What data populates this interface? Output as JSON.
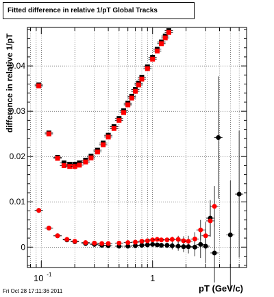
{
  "page": {
    "title": "Fitted difference in relative 1/pT  Global Tracks",
    "timestamp": "Fri Oct 28 17:11:36 2011"
  },
  "chart_data": {
    "type": "scatter",
    "title": "Fitted difference in relative 1/pT  Global Tracks",
    "xlabel": "pT (GeV/c)",
    "ylabel": "difference in relative 1/pT",
    "xscale": "log",
    "xlim": [
      0.075,
      7.0
    ],
    "ylim": [
      -0.0045,
      0.0485
    ],
    "grid": true,
    "x_ticks": [
      {
        "v": 0.1,
        "b": "10",
        "e": "-1"
      },
      {
        "v": 1,
        "b": "1",
        "e": ""
      }
    ],
    "y_ticks": [
      {
        "v": 0,
        "label": "0"
      },
      {
        "v": 0.01,
        "label": "0.01"
      },
      {
        "v": 0.02,
        "label": "0.02"
      },
      {
        "v": 0.03,
        "label": "0.03"
      },
      {
        "v": 0.04,
        "label": "0.04"
      }
    ],
    "series": [
      {
        "marker": "square",
        "color": "#000000",
        "points": [
          [
            0.095,
            0.0358
          ],
          [
            0.117,
            0.0252
          ],
          [
            0.14,
            0.0198
          ],
          [
            0.16,
            0.0186
          ],
          [
            0.18,
            0.0183
          ],
          [
            0.2,
            0.0183
          ],
          [
            0.22,
            0.0186
          ],
          [
            0.25,
            0.0192
          ],
          [
            0.28,
            0.0201
          ],
          [
            0.32,
            0.0214
          ],
          [
            0.36,
            0.023
          ],
          [
            0.4,
            0.0247
          ],
          [
            0.45,
            0.0266
          ],
          [
            0.5,
            0.0284
          ],
          [
            0.55,
            0.0301
          ],
          [
            0.6,
            0.0318
          ],
          [
            0.65,
            0.0333
          ],
          [
            0.7,
            0.0348
          ],
          [
            0.75,
            0.0362
          ],
          [
            0.8,
            0.0375
          ],
          [
            0.9,
            0.0398
          ],
          [
            1.0,
            0.0419
          ],
          [
            1.1,
            0.0437
          ],
          [
            1.2,
            0.0453
          ],
          [
            1.3,
            0.0466
          ],
          [
            1.4,
            0.0478
          ]
        ]
      },
      {
        "marker": "square",
        "color": "#ff0000",
        "points": [
          [
            0.095,
            0.0356
          ],
          [
            0.117,
            0.025
          ],
          [
            0.14,
            0.0196
          ],
          [
            0.16,
            0.018
          ],
          [
            0.18,
            0.0178
          ],
          [
            0.2,
            0.0178
          ],
          [
            0.22,
            0.0181
          ],
          [
            0.25,
            0.0188
          ],
          [
            0.28,
            0.0197
          ],
          [
            0.32,
            0.021
          ],
          [
            0.36,
            0.0226
          ],
          [
            0.4,
            0.0243
          ],
          [
            0.45,
            0.0262
          ],
          [
            0.5,
            0.028
          ],
          [
            0.55,
            0.0297
          ],
          [
            0.6,
            0.0314
          ],
          [
            0.65,
            0.0329
          ],
          [
            0.7,
            0.0344
          ],
          [
            0.75,
            0.0358
          ],
          [
            0.8,
            0.0371
          ],
          [
            0.9,
            0.0394
          ],
          [
            1.0,
            0.0415
          ],
          [
            1.1,
            0.0433
          ],
          [
            1.2,
            0.0449
          ],
          [
            1.3,
            0.0462
          ],
          [
            1.4,
            0.0474
          ]
        ]
      },
      {
        "marker": "circle",
        "color": "#000000",
        "points": [
          [
            0.095,
            0.0081,
            0
          ],
          [
            0.117,
            0.0042,
            0
          ],
          [
            0.14,
            0.0025,
            0
          ],
          [
            0.17,
            0.0016,
            0
          ],
          [
            0.2,
            0.0012,
            0
          ],
          [
            0.25,
            0.0008,
            0
          ],
          [
            0.3,
            0.0006,
            0
          ],
          [
            0.35,
            0.0004,
            0
          ],
          [
            0.4,
            0.0003,
            0
          ],
          [
            0.5,
            0.0002,
            0
          ],
          [
            0.6,
            0.0002,
            0
          ],
          [
            0.7,
            0.0003,
            0
          ],
          [
            0.8,
            0.0004,
            0
          ],
          [
            0.9,
            0.0005,
            0
          ],
          [
            1.0,
            0.0006,
            0
          ],
          [
            1.1,
            0.0005,
            0.0004
          ],
          [
            1.2,
            0.0004,
            0.0005
          ],
          [
            1.35,
            0.0004,
            0.0006
          ],
          [
            1.5,
            0.0003,
            0.0008
          ],
          [
            1.7,
            0.0002,
            0.001
          ],
          [
            1.9,
            0.0001,
            0.0012
          ],
          [
            2.1,
            0.0001,
            0.0015
          ],
          [
            2.4,
            0.0,
            0.002
          ],
          [
            2.7,
            0.0006,
            0.003
          ],
          [
            3.0,
            0.0002,
            0.0038
          ],
          [
            3.3,
            0.0064,
            0.004
          ],
          [
            3.6,
            -0.0013,
            0.0065
          ],
          [
            3.9,
            0.0242,
            0.0135
          ],
          [
            5.0,
            0.0027,
            0.012
          ],
          [
            6.0,
            0.0117,
            0.014
          ]
        ]
      },
      {
        "marker": "circle",
        "color": "#ff0000",
        "points": [
          [
            0.095,
            0.0081,
            0
          ],
          [
            0.117,
            0.0042,
            0
          ],
          [
            0.14,
            0.0025,
            0
          ],
          [
            0.17,
            0.0017,
            0
          ],
          [
            0.2,
            0.0013,
            0
          ],
          [
            0.25,
            0.001,
            0
          ],
          [
            0.3,
            0.0009,
            0
          ],
          [
            0.35,
            0.0008,
            0
          ],
          [
            0.4,
            0.0008,
            0
          ],
          [
            0.5,
            0.0009,
            0
          ],
          [
            0.6,
            0.001,
            0
          ],
          [
            0.7,
            0.0011,
            0
          ],
          [
            0.8,
            0.0013,
            0
          ],
          [
            0.9,
            0.0014,
            0
          ],
          [
            1.0,
            0.0016,
            0
          ],
          [
            1.1,
            0.0017,
            0.0003
          ],
          [
            1.2,
            0.0016,
            0.0004
          ],
          [
            1.35,
            0.0016,
            0.0005
          ],
          [
            1.5,
            0.0017,
            0.0006
          ],
          [
            1.7,
            0.0017,
            0.0008
          ],
          [
            1.9,
            0.0014,
            0.001
          ],
          [
            2.1,
            0.0013,
            0.0012
          ],
          [
            2.4,
            0.0018,
            0.0015
          ],
          [
            2.7,
            0.0038,
            0.0022
          ],
          [
            3.0,
            0.0025,
            0.003
          ],
          [
            3.3,
            0.0058,
            0.0035
          ],
          [
            3.6,
            0.009,
            0.0045
          ]
        ]
      }
    ]
  }
}
